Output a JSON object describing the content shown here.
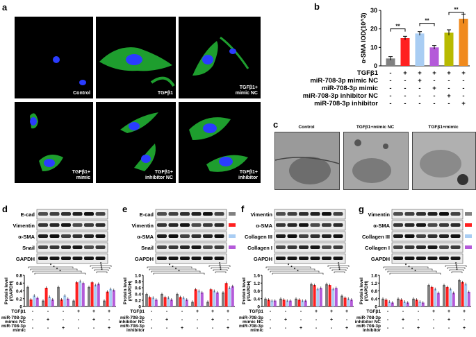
{
  "panels": {
    "a": "a",
    "b": "b",
    "c": "c",
    "d": "d",
    "e": "e",
    "f": "f",
    "g": "g"
  },
  "panel_a": {
    "captions": [
      "Control",
      "TGFβ1",
      "TGFβ1+\nmimic NC",
      "TGFβ1+\nmimic",
      "TGFβ1+\ninhibitor NC",
      "TGFβ1+\ninhibitor"
    ]
  },
  "panel_c": {
    "captions": [
      "Control",
      "TGFβ1+mimic NC",
      "TGFβ1+mimic"
    ]
  },
  "panel_d": {
    "rows": [
      "E-cad",
      "Vimentin",
      "α-SMA",
      "Snail",
      "GAPDH"
    ],
    "ylabel": "Protein level\n(/GAPDH)",
    "yticks": [
      "0.8",
      "0.6",
      "0.4",
      "0.2",
      "0"
    ],
    "cond_labels": [
      "TGFβ1",
      "miR-708-3p\nmimic NC",
      "miR-708-3p\nmimic"
    ],
    "cond_signs": [
      [
        "-",
        "-",
        "-",
        "+",
        "+",
        "+"
      ],
      [
        "-",
        "+",
        "-",
        "-",
        "+",
        "-"
      ],
      [
        "-",
        "-",
        "+",
        "-",
        "-",
        "+"
      ]
    ]
  },
  "panel_e": {
    "rows": [
      "E-cad",
      "Vimentin",
      "α-SMA",
      "Snail",
      "GAPDH"
    ],
    "yticks": [
      "1.0",
      "0.8",
      "0.6",
      "0.4",
      "0.2",
      "0"
    ],
    "cond_labels": [
      "TGFβ1",
      "miR-708-3p\ninhibitor NC",
      "miR-708-3p\ninhibitor"
    ],
    "cond_signs": [
      [
        "-",
        "-",
        "-",
        "+",
        "+",
        "+"
      ],
      [
        "-",
        "+",
        "-",
        "-",
        "+",
        "-"
      ],
      [
        "-",
        "-",
        "+",
        "-",
        "-",
        "+"
      ]
    ]
  },
  "panel_f": {
    "rows": [
      "Vimentin",
      "α-SMA",
      "Collagen III",
      "Collagen I",
      "GAPDH"
    ],
    "yticks": [
      "1.6",
      "1.2",
      "0.8",
      "0.4",
      "0"
    ],
    "cond_labels": [
      "TGFβ1",
      "miR-708-3p\nmimic NC",
      "miR-708-3p\nmimic"
    ],
    "cond_signs": [
      [
        "-",
        "-",
        "-",
        "+",
        "+",
        "+"
      ],
      [
        "-",
        "+",
        "-",
        "-",
        "+",
        "-"
      ],
      [
        "-",
        "-",
        "+",
        "-",
        "-",
        "+"
      ]
    ]
  },
  "panel_g": {
    "rows": [
      "Vimentin",
      "α-SMA",
      "Collagen III",
      "Collagen I",
      "GAPDH"
    ],
    "yticks": [
      "1.6",
      "1.2",
      "0.8",
      "0.4",
      "0"
    ],
    "cond_labels": [
      "TGFβ1",
      "miR-708-3p\ninhibitor NC",
      "miR-708-3p\ninhibitor"
    ],
    "cond_signs": [
      [
        "-",
        "-",
        "-",
        "+",
        "+",
        "+"
      ],
      [
        "-",
        "+",
        "-",
        "-",
        "+",
        "-"
      ],
      [
        "-",
        "-",
        "+",
        "-",
        "-",
        "+"
      ]
    ]
  },
  "colors": {
    "gray": "#808080",
    "red": "#ff2020",
    "blue": "#a9cdf3",
    "purple": "#b45ad9",
    "olive": "#b8ba00",
    "orange": "#f08a1e",
    "green": "#2fd12f",
    "cellblue": "#2a3cff"
  },
  "chart_data": [
    {
      "type": "bar",
      "panel": "b",
      "ylabel": "α-SMA IOD(10^3)",
      "ylim": [
        0,
        30
      ],
      "yticks": [
        0,
        10,
        20,
        30
      ],
      "values": [
        4,
        15,
        17.5,
        10,
        18,
        25.5
      ],
      "errors": [
        1,
        1,
        1,
        1,
        1.5,
        2.5
      ],
      "colors": [
        "#808080",
        "#ff2020",
        "#a9cdf3",
        "#b45ad9",
        "#b8ba00",
        "#f08a1e"
      ],
      "significance": "**",
      "condition_rows": [
        {
          "label": "TGFβ1",
          "signs": [
            "-",
            "+",
            "+",
            "+",
            "+",
            "+"
          ]
        },
        {
          "label": "miR-708-3p mimic NC",
          "signs": [
            "-",
            "-",
            "+",
            "-",
            "-",
            "-"
          ]
        },
        {
          "label": "miR-708-3p mimic",
          "signs": [
            "-",
            "-",
            "-",
            "+",
            "-",
            "-"
          ]
        },
        {
          "label": "miR-708-3p inhibitor NC",
          "signs": [
            "-",
            "-",
            "-",
            "-",
            "+",
            "-"
          ]
        },
        {
          "label": "miR-708-3p inhibitor",
          "signs": [
            "-",
            "-",
            "-",
            "-",
            "-",
            "+"
          ]
        }
      ]
    },
    {
      "type": "bar",
      "panel": "d",
      "ylim": [
        0,
        0.8
      ],
      "groups": 6,
      "series": [
        {
          "values": [
            0.5,
            0.15,
            0.5,
            0.15,
            0.5,
            0.15
          ]
        },
        {
          "values": [
            0.18,
            0.48,
            0.18,
            0.62,
            0.62,
            0.38
          ]
        },
        {
          "values": [
            0.28,
            0.25,
            0.28,
            0.65,
            0.55,
            0.45
          ]
        },
        {
          "values": [
            0.22,
            0.18,
            0.2,
            0.6,
            0.58,
            0.42
          ]
        }
      ]
    },
    {
      "type": "bar",
      "panel": "e",
      "ylim": [
        0,
        1.0
      ],
      "groups": 6,
      "series": [
        {
          "values": [
            0.4,
            0.4,
            0.4,
            0.15,
            0.15,
            0.45
          ]
        },
        {
          "values": [
            0.3,
            0.3,
            0.3,
            0.55,
            0.55,
            0.75
          ]
        },
        {
          "values": [
            0.28,
            0.28,
            0.28,
            0.5,
            0.5,
            0.6
          ]
        },
        {
          "values": [
            0.22,
            0.22,
            0.22,
            0.45,
            0.45,
            0.65
          ]
        }
      ]
    },
    {
      "type": "bar",
      "panel": "f",
      "ylim": [
        0,
        1.6
      ],
      "groups": 6,
      "series": [
        {
          "values": [
            0.4,
            0.4,
            0.4,
            1.15,
            1.15,
            0.55
          ]
        },
        {
          "values": [
            0.35,
            0.35,
            0.35,
            1.1,
            1.1,
            0.45
          ]
        },
        {
          "values": [
            0.3,
            0.3,
            0.3,
            0.9,
            0.9,
            0.4
          ]
        },
        {
          "values": [
            0.3,
            0.3,
            0.3,
            0.95,
            0.95,
            0.35
          ]
        }
      ]
    },
    {
      "type": "bar",
      "panel": "g",
      "ylim": [
        0,
        1.6
      ],
      "groups": 6,
      "series": [
        {
          "values": [
            0.4,
            0.4,
            0.4,
            1.1,
            1.1,
            1.35
          ]
        },
        {
          "values": [
            0.35,
            0.35,
            0.35,
            1.0,
            1.0,
            1.25
          ]
        },
        {
          "values": [
            0.25,
            0.25,
            0.25,
            0.9,
            0.9,
            1.15
          ]
        },
        {
          "values": [
            0.2,
            0.2,
            0.2,
            0.7,
            0.7,
            0.75
          ]
        }
      ]
    }
  ]
}
